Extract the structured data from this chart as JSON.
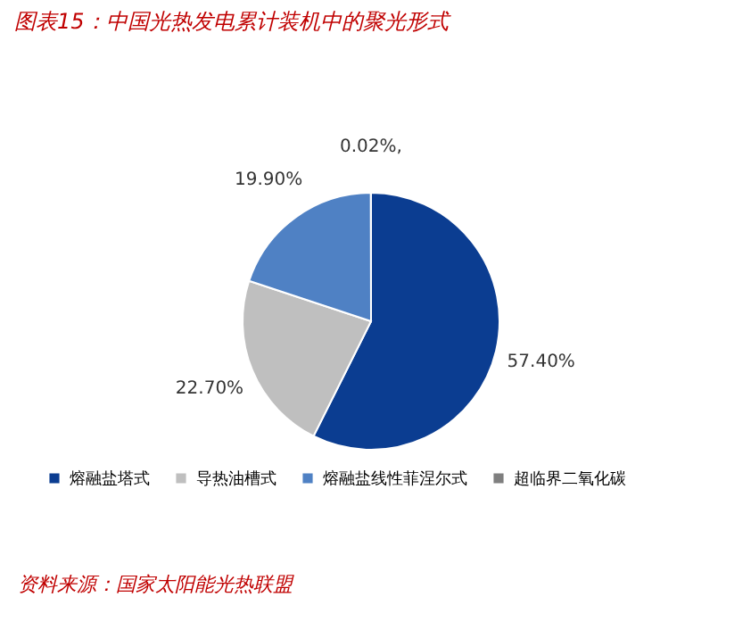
{
  "chart_data": {
    "type": "pie",
    "title": "图表15：中国光热发电累计装机中的聚光形式",
    "categories": [
      "熔融盐塔式",
      "导热油槽式",
      "熔融盐线性菲涅尔式",
      "超临界二氧化碳"
    ],
    "values": [
      57.4,
      22.7,
      19.9,
      0.02
    ],
    "colors": [
      "#0b3d91",
      "#bfbfbf",
      "#4f81c4",
      "#7f7f7f"
    ],
    "value_labels": [
      "57.40%",
      "22.70%",
      "19.90%",
      "0.02%,"
    ],
    "legend": "bottom",
    "annotations": [
      "资料来源：国家太阳能光热联盟"
    ]
  }
}
